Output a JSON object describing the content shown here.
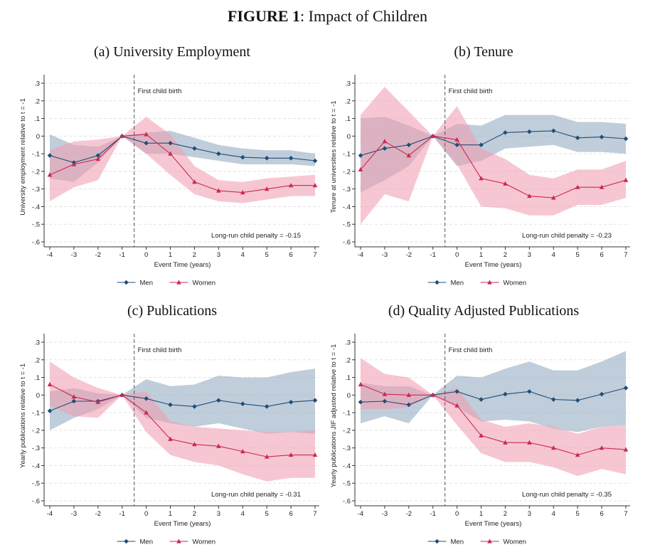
{
  "figure": {
    "label": "FIGURE 1",
    "separator": ":",
    "title": "Impact of Children"
  },
  "colors": {
    "men": "#1f4e79",
    "women": "#cc2952",
    "men_band": "#9aaec4",
    "women_band": "#ef9eb1",
    "grid": "#e3e3e3",
    "axis": "#333333"
  },
  "chart_data": [
    {
      "type": "line",
      "title": "(a) University Employment",
      "xlabel": "Event Time (years)",
      "ylabel": "University employment relative to t = -1",
      "x": [
        -4,
        -3,
        -2,
        -1,
        0,
        1,
        2,
        3,
        4,
        5,
        6,
        7
      ],
      "ylim": [
        -0.6,
        0.3
      ],
      "yticks": [
        0.3,
        0.2,
        0.1,
        0,
        -0.1,
        -0.2,
        -0.3,
        -0.4,
        -0.5,
        -0.6
      ],
      "ytick_labels": [
        ".3",
        ".2",
        ".1",
        "0",
        "-.1",
        "-.2",
        "-.3",
        "-.4",
        "-.5",
        "-.6"
      ],
      "event_label": "First child birth",
      "annotation": "Long-run child penalty = -0.15",
      "legend": [
        "Men",
        "Women"
      ],
      "series": [
        {
          "name": "Men",
          "values": [
            -0.11,
            -0.15,
            -0.11,
            0,
            -0.04,
            -0.04,
            -0.07,
            -0.1,
            -0.12,
            -0.125,
            -0.125,
            -0.14
          ],
          "lower": [
            -0.24,
            -0.26,
            -0.15,
            0,
            -0.1,
            -0.1,
            -0.12,
            -0.14,
            -0.16,
            -0.16,
            -0.16,
            -0.17
          ],
          "upper": [
            0.01,
            -0.05,
            -0.06,
            0,
            0.02,
            0.03,
            -0.01,
            -0.05,
            -0.07,
            -0.08,
            -0.08,
            -0.1
          ]
        },
        {
          "name": "Women",
          "values": [
            -0.22,
            -0.16,
            -0.13,
            0,
            0.01,
            -0.1,
            -0.26,
            -0.31,
            -0.32,
            -0.3,
            -0.28,
            -0.28
          ],
          "lower": [
            -0.37,
            -0.29,
            -0.25,
            0,
            -0.1,
            -0.22,
            -0.33,
            -0.37,
            -0.38,
            -0.36,
            -0.34,
            -0.34
          ],
          "upper": [
            -0.08,
            -0.03,
            -0.02,
            0,
            0.11,
            0.01,
            -0.17,
            -0.25,
            -0.26,
            -0.24,
            -0.23,
            -0.22
          ]
        }
      ]
    },
    {
      "type": "line",
      "title": "(b) Tenure",
      "xlabel": "Event Time (years)",
      "ylabel": "Tenure at universities relative to t = -1",
      "x": [
        -4,
        -3,
        -2,
        -1,
        0,
        1,
        2,
        3,
        4,
        5,
        6,
        7
      ],
      "ylim": [
        -0.6,
        0.3
      ],
      "yticks": [
        0.3,
        0.2,
        0.1,
        0,
        -0.1,
        -0.2,
        -0.3,
        -0.4,
        -0.5,
        -0.6
      ],
      "ytick_labels": [
        ".3",
        ".2",
        ".1",
        "0",
        "-.1",
        "-.2",
        "-.3",
        "-.4",
        "-.5",
        "-.6"
      ],
      "event_label": "First child birth",
      "annotation": "Long-run child penalty = -0.23",
      "legend": [
        "Men",
        "Women"
      ],
      "series": [
        {
          "name": "Men",
          "values": [
            -0.11,
            -0.07,
            -0.05,
            0,
            -0.05,
            -0.05,
            0.02,
            0.025,
            0.03,
            -0.01,
            -0.005,
            -0.015
          ],
          "lower": [
            -0.32,
            -0.25,
            -0.17,
            0,
            -0.17,
            -0.14,
            -0.07,
            -0.06,
            -0.05,
            -0.09,
            -0.09,
            -0.1
          ],
          "upper": [
            0.1,
            0.11,
            0.06,
            0,
            0.07,
            0.06,
            0.12,
            0.12,
            0.12,
            0.08,
            0.08,
            0.07
          ]
        },
        {
          "name": "Women",
          "values": [
            -0.19,
            -0.03,
            -0.11,
            0,
            -0.02,
            -0.24,
            -0.27,
            -0.34,
            -0.35,
            -0.29,
            -0.29,
            -0.25
          ],
          "lower": [
            -0.5,
            -0.33,
            -0.37,
            0,
            -0.16,
            -0.4,
            -0.41,
            -0.45,
            -0.45,
            -0.39,
            -0.39,
            -0.35
          ],
          "upper": [
            0.12,
            0.28,
            0.14,
            0,
            0.17,
            -0.07,
            -0.13,
            -0.22,
            -0.24,
            -0.19,
            -0.19,
            -0.14
          ]
        }
      ]
    },
    {
      "type": "line",
      "title": "(c) Publications",
      "xlabel": "Event Time (years)",
      "ylabel": "Yearly publications relative to t = -1",
      "x": [
        -4,
        -3,
        -2,
        -1,
        0,
        1,
        2,
        3,
        4,
        5,
        6,
        7
      ],
      "ylim": [
        -0.6,
        0.3
      ],
      "yticks": [
        0.3,
        0.2,
        0.1,
        0,
        -0.1,
        -0.2,
        -0.3,
        -0.4,
        -0.5,
        -0.6
      ],
      "ytick_labels": [
        ".3",
        ".2",
        ".1",
        "0",
        "-.1",
        "-.2",
        "-.3",
        "-.4",
        "-.5",
        "-.6"
      ],
      "event_label": "First child birth",
      "annotation": "Long-run child penalty = -0.31",
      "legend": [
        "Men",
        "Women"
      ],
      "series": [
        {
          "name": "Men",
          "values": [
            -0.09,
            -0.035,
            -0.035,
            0,
            -0.02,
            -0.055,
            -0.065,
            -0.03,
            -0.05,
            -0.065,
            -0.04,
            -0.03
          ],
          "lower": [
            -0.2,
            -0.13,
            -0.08,
            0,
            -0.13,
            -0.16,
            -0.18,
            -0.16,
            -0.19,
            -0.22,
            -0.21,
            -0.22
          ],
          "upper": [
            0.02,
            0.04,
            0.01,
            0,
            0.09,
            0.05,
            0.06,
            0.11,
            0.1,
            0.1,
            0.13,
            0.15
          ]
        },
        {
          "name": "Women",
          "values": [
            0.06,
            -0.01,
            -0.04,
            0,
            -0.1,
            -0.25,
            -0.28,
            -0.29,
            -0.32,
            -0.35,
            -0.34,
            -0.34
          ],
          "lower": [
            -0.06,
            -0.12,
            -0.13,
            0,
            -0.21,
            -0.34,
            -0.38,
            -0.4,
            -0.45,
            -0.49,
            -0.47,
            -0.47
          ],
          "upper": [
            0.19,
            0.1,
            0.04,
            0,
            0.02,
            -0.15,
            -0.18,
            -0.19,
            -0.2,
            -0.21,
            -0.21,
            -0.2
          ]
        }
      ]
    },
    {
      "type": "line",
      "title": "(d) Quality Adjusted Publications",
      "xlabel": "Event Time (years)",
      "ylabel": "Yearly publications JIF adjusted relative to t = -1",
      "x": [
        -4,
        -3,
        -2,
        -1,
        0,
        1,
        2,
        3,
        4,
        5,
        6,
        7
      ],
      "ylim": [
        -0.6,
        0.3
      ],
      "yticks": [
        0.3,
        0.2,
        0.1,
        0,
        -0.1,
        -0.2,
        -0.3,
        -0.4,
        -0.5,
        -0.6
      ],
      "ytick_labels": [
        ".3",
        ".2",
        ".1",
        "0",
        "-.1",
        "-.2",
        "-.3",
        "-.4",
        "-.5",
        "-.6"
      ],
      "event_label": "First child birth",
      "annotation": "Long-run child penalty = -0.35",
      "legend": [
        "Men",
        "Women"
      ],
      "series": [
        {
          "name": "Men",
          "values": [
            -0.04,
            -0.035,
            -0.055,
            0,
            0.02,
            -0.025,
            0.005,
            0.02,
            -0.025,
            -0.03,
            0.005,
            0.04
          ],
          "lower": [
            -0.16,
            -0.12,
            -0.16,
            0,
            -0.07,
            -0.15,
            -0.14,
            -0.15,
            -0.19,
            -0.21,
            -0.18,
            -0.17
          ],
          "upper": [
            0.07,
            0.05,
            0.05,
            0,
            0.11,
            0.1,
            0.15,
            0.19,
            0.14,
            0.14,
            0.19,
            0.25
          ]
        },
        {
          "name": "Women",
          "values": [
            0.06,
            0.005,
            0.0,
            0,
            -0.06,
            -0.23,
            -0.27,
            -0.27,
            -0.3,
            -0.34,
            -0.3,
            -0.31
          ],
          "lower": [
            -0.08,
            -0.08,
            -0.07,
            0,
            -0.17,
            -0.33,
            -0.38,
            -0.38,
            -0.41,
            -0.46,
            -0.42,
            -0.45
          ],
          "upper": [
            0.21,
            0.12,
            0.1,
            0,
            0.04,
            -0.14,
            -0.18,
            -0.16,
            -0.18,
            -0.22,
            -0.18,
            -0.17
          ]
        }
      ]
    }
  ]
}
